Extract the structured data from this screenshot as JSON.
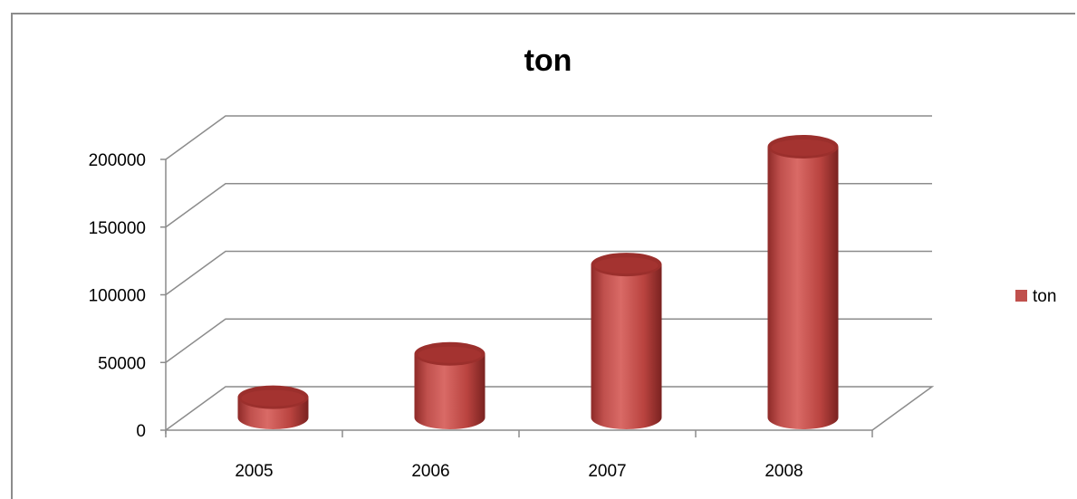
{
  "chart_data": {
    "type": "bar",
    "title": "ton",
    "categories": [
      "2005",
      "2006",
      "2007",
      "2008"
    ],
    "series": [
      {
        "name": "ton",
        "values": [
          15000,
          47000,
          113000,
          200000
        ],
        "color": "#c0504d"
      }
    ],
    "yticks": [
      "0",
      "50000",
      "100000",
      "150000",
      "200000"
    ],
    "ylim": [
      0,
      200000
    ],
    "grid": true,
    "legend": "right",
    "style": "3d-cylinder"
  }
}
